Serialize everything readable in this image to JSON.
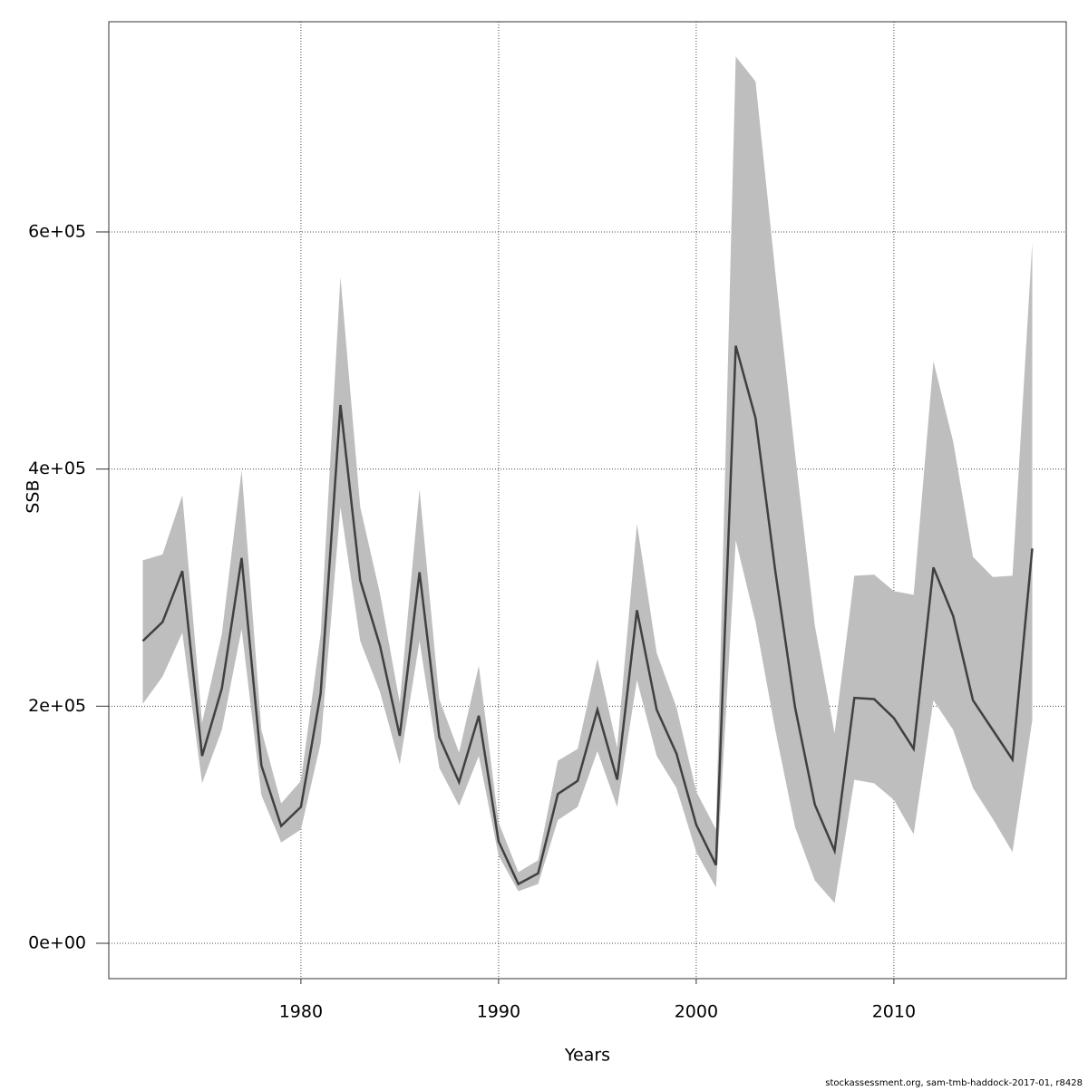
{
  "chart_data": {
    "type": "line",
    "x_label": "Years",
    "y_label": "SSB",
    "footnote": "stockassessment.org, sam-tmb-haddock-2017-01, r8428",
    "x": [
      1972,
      1973,
      1974,
      1975,
      1976,
      1977,
      1978,
      1979,
      1980,
      1981,
      1982,
      1983,
      1984,
      1985,
      1986,
      1987,
      1988,
      1989,
      1990,
      1991,
      1992,
      1993,
      1994,
      1995,
      1996,
      1997,
      1998,
      1999,
      2000,
      2001,
      2002,
      2003,
      2004,
      2005,
      2006,
      2007,
      2008,
      2009,
      2010,
      2011,
      2012,
      2013,
      2014,
      2015,
      2016,
      2017
    ],
    "values": [
      255000,
      271000,
      314000,
      158000,
      215000,
      325000,
      150000,
      99000,
      115000,
      211000,
      454000,
      306000,
      251000,
      175000,
      313000,
      174000,
      136000,
      192000,
      86000,
      50000,
      59000,
      126000,
      137000,
      197000,
      138000,
      281000,
      197000,
      160000,
      100000,
      66000,
      504000,
      443000,
      314000,
      199000,
      117000,
      78000,
      207000,
      206000,
      190000,
      164000,
      317000,
      276000,
      205000,
      180000,
      155000,
      333000
    ],
    "lower": [
      202000,
      225000,
      262000,
      135000,
      180000,
      265000,
      125000,
      85000,
      96000,
      169000,
      368000,
      255000,
      212000,
      151000,
      255000,
      148000,
      116000,
      158000,
      74000,
      44000,
      50000,
      104000,
      115000,
      162000,
      115000,
      222000,
      158000,
      131000,
      77000,
      47000,
      340000,
      271000,
      180000,
      98000,
      53000,
      34000,
      138000,
      135000,
      121000,
      92000,
      205000,
      180000,
      131000,
      105000,
      77000,
      188000
    ],
    "upper": [
      323000,
      328000,
      378000,
      186000,
      261000,
      399000,
      180000,
      118000,
      137000,
      261000,
      562000,
      368000,
      295000,
      203000,
      383000,
      206000,
      161000,
      234000,
      102000,
      60000,
      70000,
      154000,
      164000,
      240000,
      165000,
      354000,
      245000,
      199000,
      128000,
      96000,
      748000,
      727000,
      566000,
      413000,
      268000,
      177000,
      310000,
      311000,
      297000,
      294000,
      491000,
      423000,
      326000,
      309000,
      310000,
      591000
    ],
    "color": "#404040",
    "band_color": "#bebebe",
    "xlim": [
      1970.28,
      2018.72
    ],
    "ylim": [
      -29800,
      777300
    ],
    "xticks": [
      1980,
      1990,
      2000,
      2010
    ],
    "yticks": [
      {
        "value": 0,
        "label": "0e+00"
      },
      {
        "value": 200000,
        "label": "2e+05"
      },
      {
        "value": 400000,
        "label": "4e+05"
      },
      {
        "value": 600000,
        "label": "6e+05"
      }
    ],
    "grid": true
  }
}
